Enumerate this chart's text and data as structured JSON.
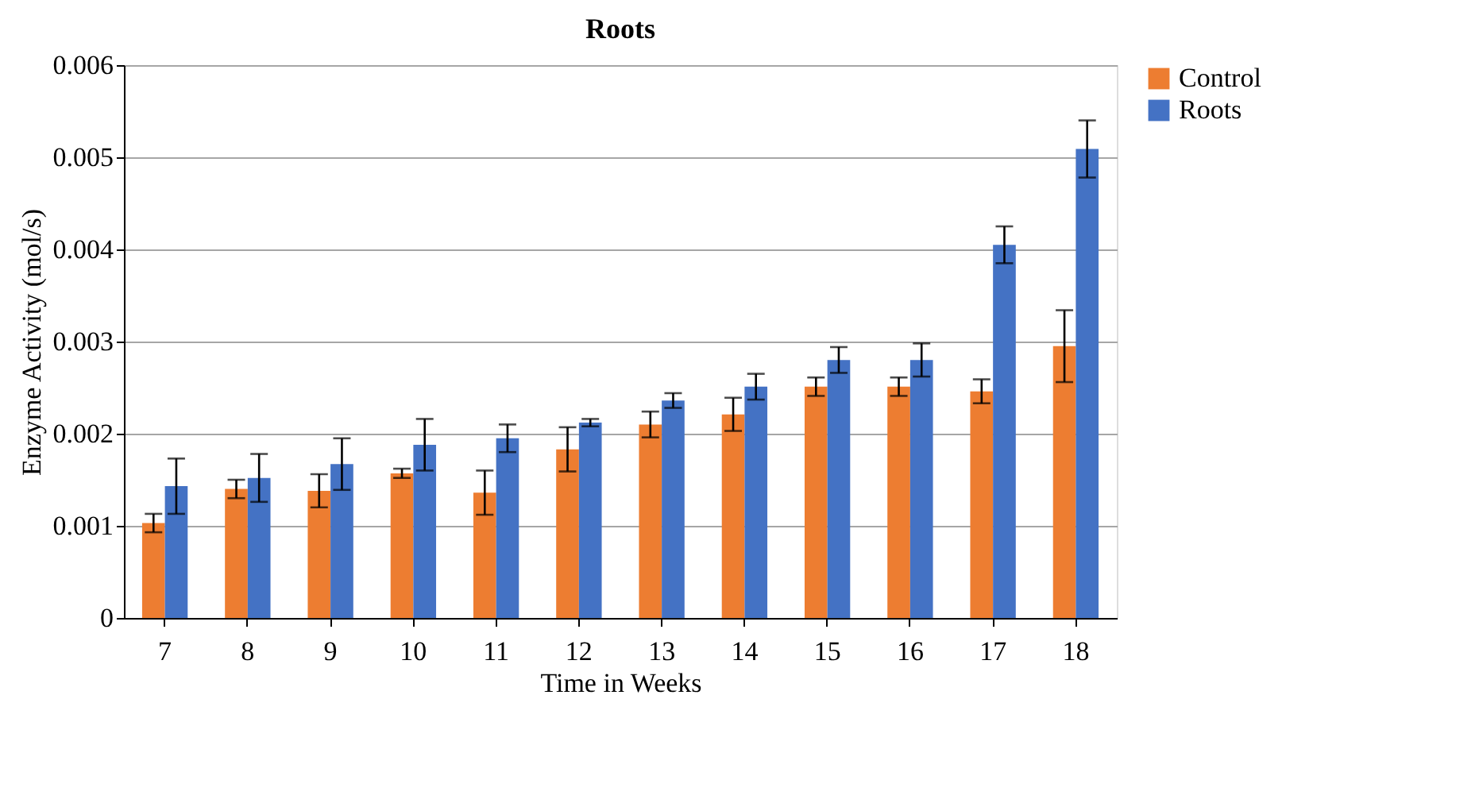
{
  "chart_data": {
    "type": "bar",
    "title": "Roots",
    "xlabel": "Time in Weeks",
    "ylabel": "Enzyme Activity (mol/s)",
    "categories": [
      "7",
      "8",
      "9",
      "10",
      "11",
      "12",
      "13",
      "14",
      "15",
      "16",
      "17",
      "18"
    ],
    "series": [
      {
        "name": "Control",
        "color": "#ed7d31",
        "values": [
          0.00103,
          0.0014,
          0.00138,
          0.00157,
          0.00136,
          0.00183,
          0.0021,
          0.00221,
          0.00251,
          0.00251,
          0.00246,
          0.00295
        ],
        "errors": [
          0.0001,
          0.0001,
          0.00018,
          5e-05,
          0.00024,
          0.00024,
          0.00014,
          0.00018,
          0.0001,
          0.0001,
          0.00013,
          0.00039
        ]
      },
      {
        "name": "Roots",
        "color": "#4472c4",
        "values": [
          0.00143,
          0.00152,
          0.00167,
          0.00188,
          0.00195,
          0.00212,
          0.00236,
          0.00251,
          0.0028,
          0.0028,
          0.00405,
          0.00509
        ],
        "errors": [
          0.0003,
          0.00026,
          0.00028,
          0.00028,
          0.00015,
          4e-05,
          8e-05,
          0.00014,
          0.00014,
          0.00018,
          0.0002,
          0.00031
        ]
      }
    ],
    "ylim": [
      0,
      0.006
    ],
    "yticks": [
      0,
      0.001,
      0.002,
      0.003,
      0.004,
      0.005,
      0.006
    ],
    "grid": "y",
    "legend": "right"
  }
}
